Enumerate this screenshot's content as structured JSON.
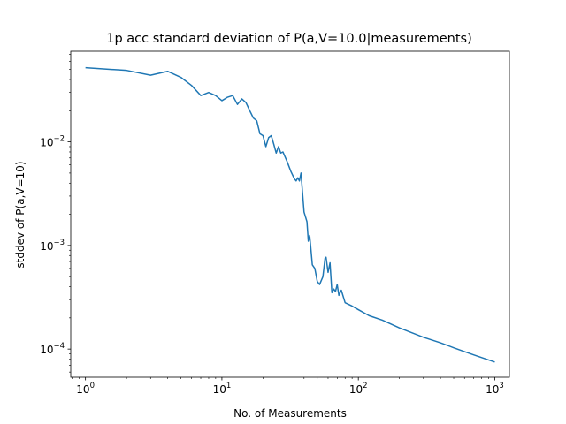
{
  "chart_data": {
    "type": "line",
    "title": "1p acc standard deviation of P(a,V=10.0|measurements)",
    "xlabel": "No. of Measurements",
    "ylabel": "stddev of P(a,V=10)",
    "xscale": "log",
    "yscale": "log",
    "xlim": [
      0.78,
      1280
    ],
    "ylim": [
      5.35e-05,
      0.075
    ],
    "grid": false,
    "line_color": "#1f77b4",
    "x_ticks": [
      {
        "value": 1,
        "base": "10",
        "exp": "0"
      },
      {
        "value": 10,
        "base": "10",
        "exp": "1"
      },
      {
        "value": 100,
        "base": "10",
        "exp": "2"
      },
      {
        "value": 1000,
        "base": "10",
        "exp": "3"
      }
    ],
    "y_ticks": [
      {
        "value": 0.0001,
        "base": "10",
        "exp": "−4"
      },
      {
        "value": 0.001,
        "base": "10",
        "exp": "−3"
      },
      {
        "value": 0.01,
        "base": "10",
        "exp": "−2"
      }
    ],
    "series": [
      {
        "x": [
          1,
          2,
          3,
          4,
          5,
          6,
          7,
          8,
          9,
          10,
          11,
          12,
          13,
          14,
          15,
          16,
          17,
          18,
          19,
          20,
          21,
          22,
          23,
          24,
          25,
          26,
          27,
          28,
          30,
          32,
          34,
          35,
          36,
          37,
          38,
          40,
          42,
          43,
          44,
          46,
          48,
          50,
          52,
          55,
          57,
          58,
          60,
          62,
          64,
          66,
          68,
          70,
          72,
          75,
          80,
          90,
          100,
          120,
          150,
          200,
          300,
          400,
          500,
          700,
          1000
        ],
        "y": [
          0.052,
          0.049,
          0.044,
          0.048,
          0.042,
          0.035,
          0.028,
          0.03,
          0.028,
          0.025,
          0.027,
          0.028,
          0.023,
          0.026,
          0.024,
          0.02,
          0.017,
          0.016,
          0.012,
          0.0115,
          0.009,
          0.011,
          0.0115,
          0.0095,
          0.0078,
          0.009,
          0.0078,
          0.008,
          0.0065,
          0.0052,
          0.0044,
          0.0042,
          0.0045,
          0.0042,
          0.005,
          0.0021,
          0.0017,
          0.0011,
          0.00125,
          0.00065,
          0.0006,
          0.00045,
          0.00042,
          0.0005,
          0.00075,
          0.00077,
          0.00055,
          0.00068,
          0.00035,
          0.00038,
          0.00036,
          0.00042,
          0.00033,
          0.00037,
          0.00028,
          0.00026,
          0.00024,
          0.00021,
          0.00019,
          0.00016,
          0.00013,
          0.000115,
          0.000103,
          8.8e-05,
          7.5e-05
        ]
      }
    ]
  }
}
